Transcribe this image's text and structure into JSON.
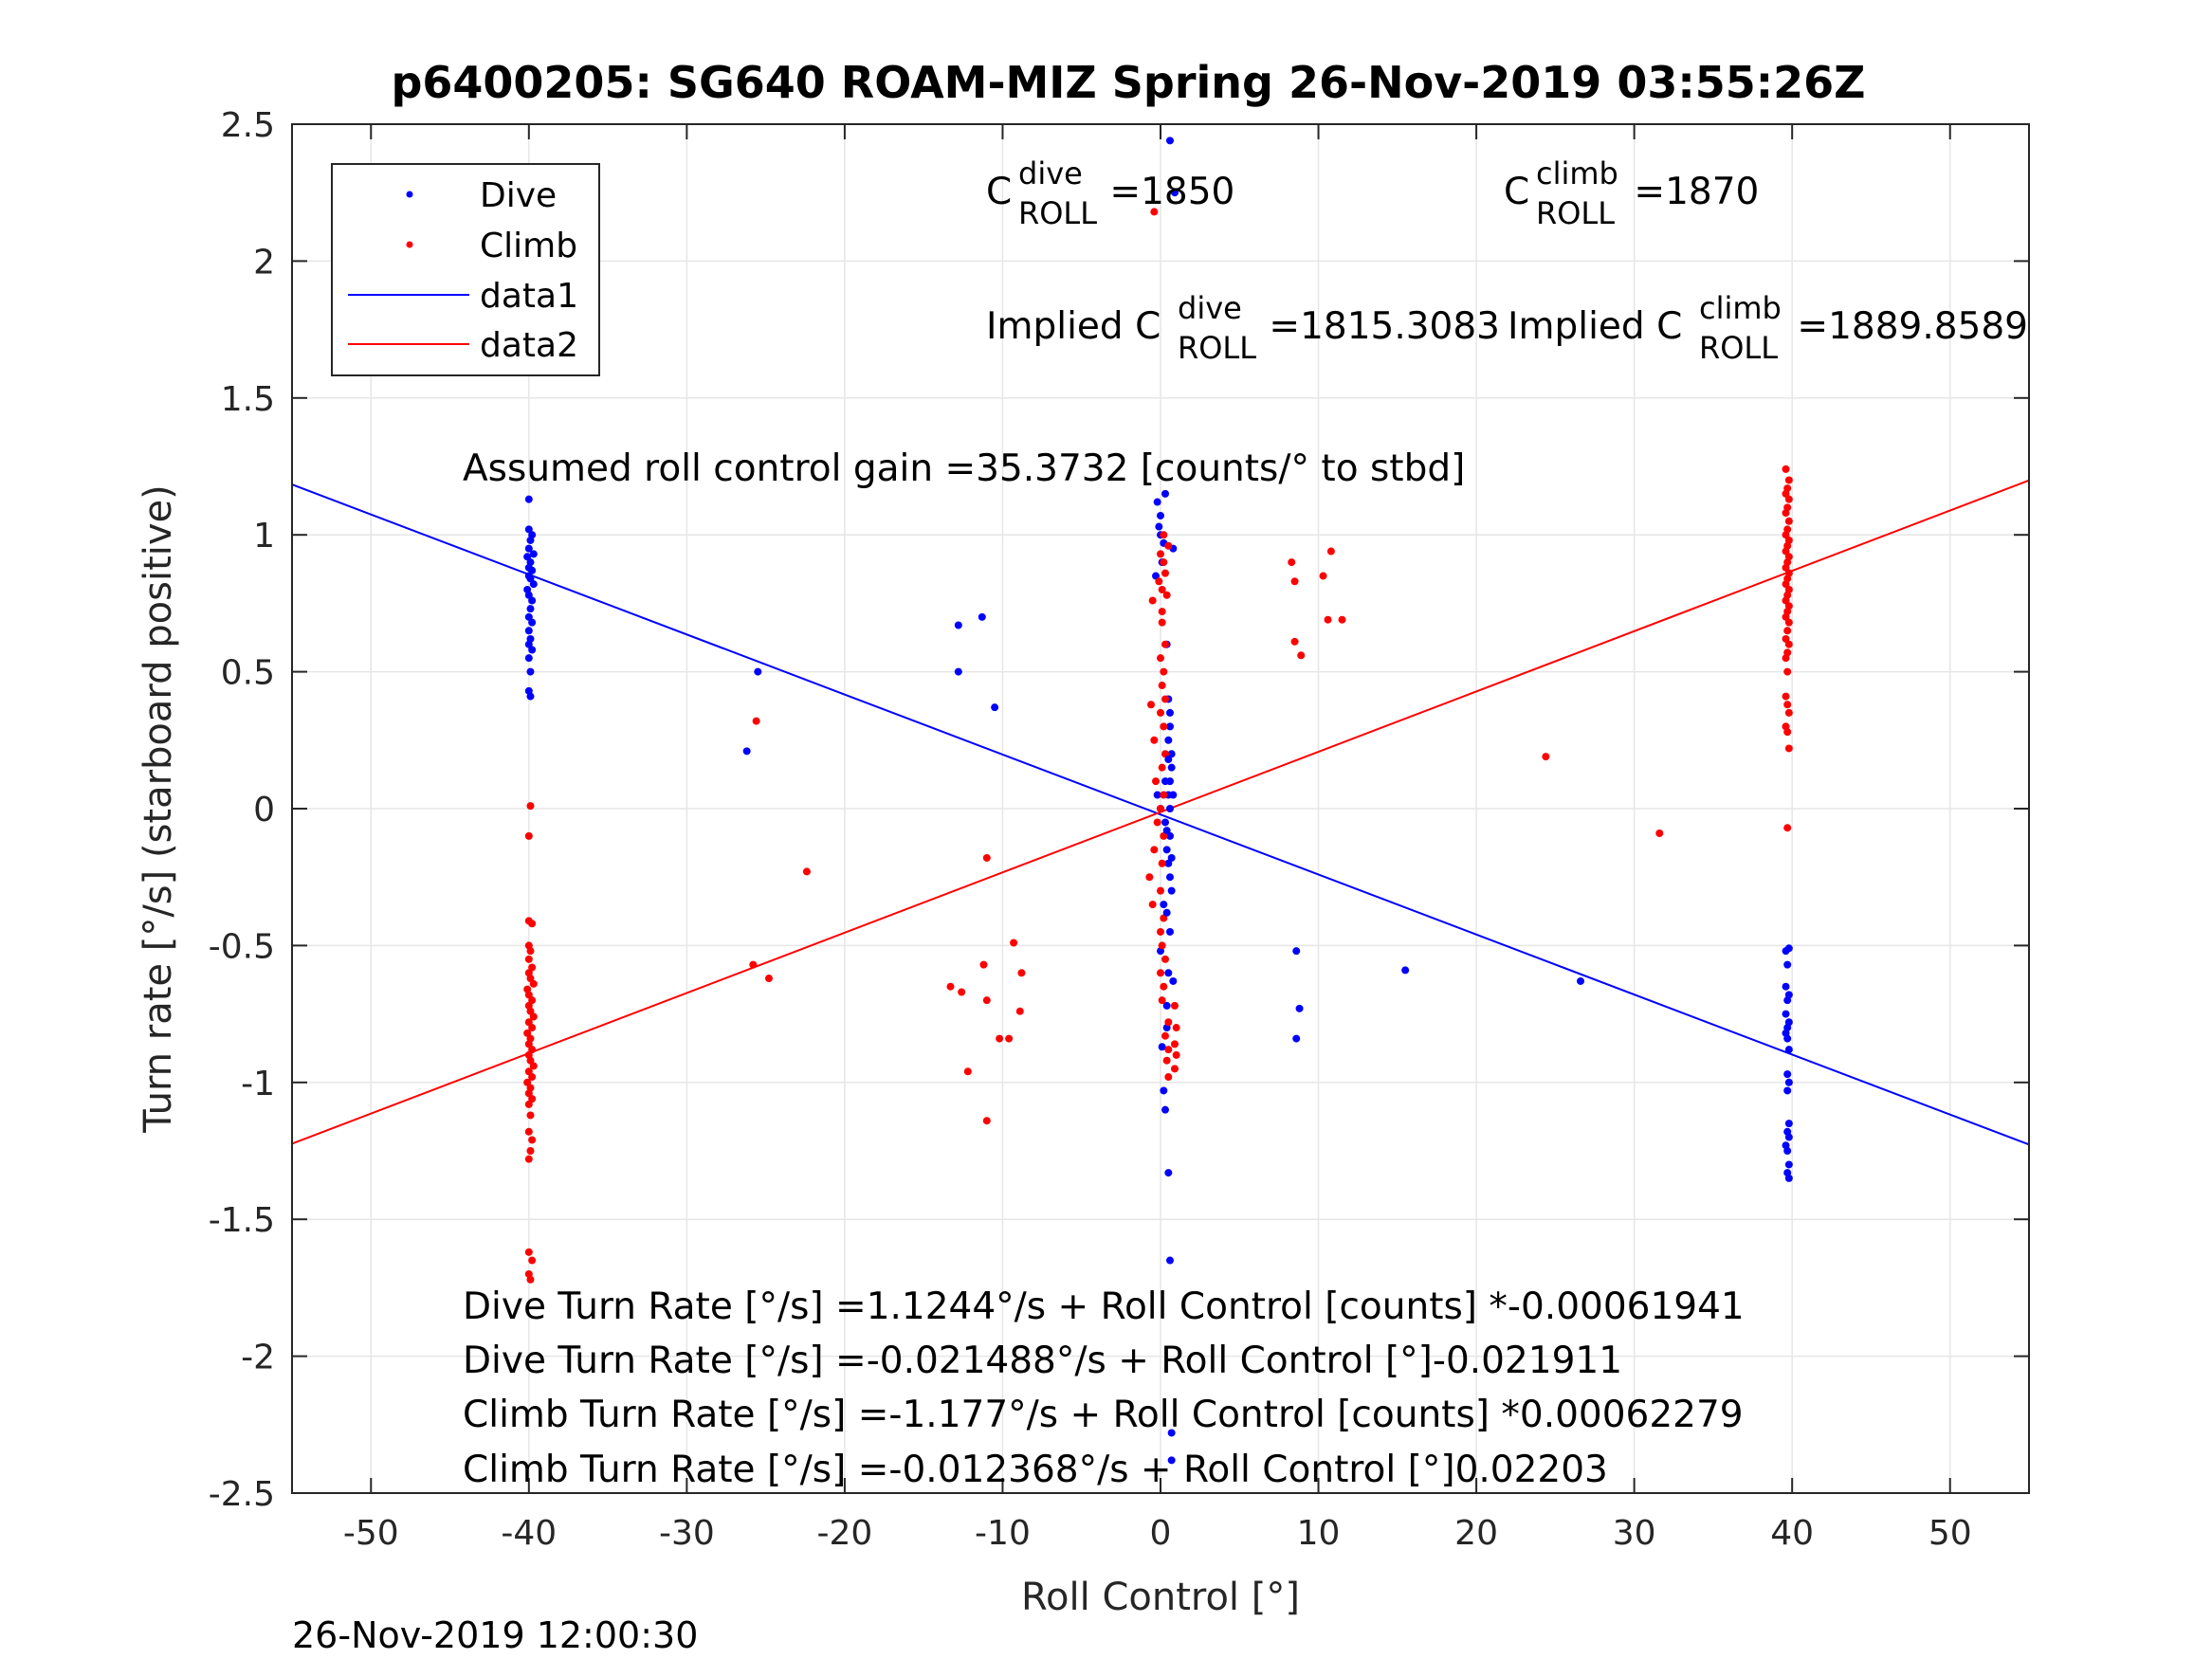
{
  "chart_data": {
    "type": "scatter",
    "title": "p6400205: SG640 ROAM-MIZ Spring 26-Nov-2019 03:55:26Z",
    "xlabel": "Roll Control [°]",
    "ylabel": "Turn rate [°/s] (starboard positive)",
    "xlim": [
      -55,
      55
    ],
    "ylim": [
      -2.5,
      2.5
    ],
    "xticks": [
      -50,
      -40,
      -30,
      -20,
      -10,
      0,
      10,
      20,
      30,
      40,
      50
    ],
    "yticks": [
      2.5,
      2,
      1.5,
      1,
      0.5,
      0,
      -0.5,
      -1,
      -1.5,
      -2,
      -2.5
    ],
    "xtick_labels": [
      "-50",
      "-40",
      "-30",
      "-20",
      "-10",
      "0",
      "10",
      "20",
      "30",
      "40",
      "50"
    ],
    "ytick_labels": [
      "2.5",
      "2",
      "1.5",
      "1",
      "0.5",
      "0",
      "-0.5",
      "-1",
      "-1.5",
      "-2",
      "-2.5"
    ],
    "grid": true,
    "legend": {
      "placement": "top-left",
      "entries": [
        {
          "label": "Dive",
          "kind": "marker",
          "color": "#0000ff"
        },
        {
          "label": "Climb",
          "kind": "marker",
          "color": "#ff0000"
        },
        {
          "label": "data1",
          "kind": "line",
          "color": "#0000ff"
        },
        {
          "label": "data2",
          "kind": "line",
          "color": "#ff0000"
        }
      ]
    },
    "annotations": {
      "c_dive": {
        "base": "C",
        "sup": "dive",
        "sub": "ROLL",
        "rest": " =1850"
      },
      "c_climb": {
        "base": "C",
        "sup": "climb",
        "sub": "ROLL",
        "rest": " =1870"
      },
      "implied_dive": {
        "prefix": "Implied C",
        "sup": "dive",
        "sub": "ROLL",
        "rest": " =1815.3083"
      },
      "implied_climb": {
        "prefix": "Implied C",
        "sup": "climb",
        "sub": "ROLL",
        "rest": " =1889.8589"
      },
      "gain": "Assumed roll control gain =35.3732 [counts/° to stbd]",
      "eq1": "Dive Turn Rate [°/s] =1.1244°/s + Roll Control [counts] *-0.00061941",
      "eq2": "Dive Turn Rate [°/s] =-0.021488°/s + Roll Control [°]-0.021911",
      "eq3": "Climb Turn Rate [°/s] =-1.177°/s + Roll Control [counts] *0.00062279",
      "eq4": "Climb Turn Rate [°/s] =-0.012368°/s + Roll Control [°]0.02203"
    },
    "lines": [
      {
        "name": "data1",
        "color": "#0000ff",
        "x": [
          -55,
          55
        ],
        "y": [
          1.184,
          -1.227
        ]
      },
      {
        "name": "data2",
        "color": "#ff0000",
        "x": [
          -55,
          55
        ],
        "y": [
          -1.224,
          1.199
        ]
      }
    ],
    "series": [
      {
        "name": "Dive",
        "color": "#0000ff",
        "points": [
          [
            -40,
            1.13
          ],
          [
            -40,
            1.02
          ],
          [
            -39.8,
            1.0
          ],
          [
            -39.9,
            0.98
          ],
          [
            -40,
            0.95
          ],
          [
            -39.7,
            0.93
          ],
          [
            -40.1,
            0.92
          ],
          [
            -39.9,
            0.9
          ],
          [
            -40,
            0.88
          ],
          [
            -39.8,
            0.87
          ],
          [
            -40,
            0.85
          ],
          [
            -39.9,
            0.84
          ],
          [
            -39.7,
            0.82
          ],
          [
            -40.1,
            0.8
          ],
          [
            -40,
            0.78
          ],
          [
            -39.8,
            0.76
          ],
          [
            -39.9,
            0.73
          ],
          [
            -40,
            0.7
          ],
          [
            -39.8,
            0.68
          ],
          [
            -40,
            0.65
          ],
          [
            -39.9,
            0.62
          ],
          [
            -40,
            0.6
          ],
          [
            -39.8,
            0.58
          ],
          [
            -40,
            0.55
          ],
          [
            -39.9,
            0.5
          ],
          [
            -40,
            0.43
          ],
          [
            -39.9,
            0.41
          ],
          [
            -26.2,
            0.21
          ],
          [
            -25.5,
            0.5
          ],
          [
            -12.8,
            0.67
          ],
          [
            -12.8,
            0.5
          ],
          [
            -11.3,
            0.7
          ],
          [
            -10.5,
            0.37
          ],
          [
            0.6,
            2.44
          ],
          [
            0.9,
            2.25
          ],
          [
            0.0,
            1.07
          ],
          [
            0.3,
            1.15
          ],
          [
            -0.2,
            1.12
          ],
          [
            -0.1,
            1.03
          ],
          [
            0.0,
            1.0
          ],
          [
            0.2,
            0.97
          ],
          [
            0.8,
            0.95
          ],
          [
            0.1,
            0.9
          ],
          [
            -0.3,
            0.85
          ],
          [
            0.4,
            0.6
          ],
          [
            0.5,
            0.4
          ],
          [
            0.6,
            0.3
          ],
          [
            0.7,
            0.2
          ],
          [
            0.6,
            0.1
          ],
          [
            0.5,
            0.05
          ],
          [
            -0.2,
            0.05
          ],
          [
            0.0,
            0.0
          ],
          [
            0.3,
            -0.05
          ],
          [
            0.6,
            -0.1
          ],
          [
            0.5,
            -0.2
          ],
          [
            0.7,
            -0.3
          ],
          [
            0.2,
            -0.35
          ],
          [
            0.6,
            -0.45
          ],
          [
            0.0,
            -0.52
          ],
          [
            0.5,
            -0.6
          ],
          [
            0.8,
            -0.63
          ],
          [
            0.4,
            -0.72
          ],
          [
            0.4,
            -0.8
          ],
          [
            0.1,
            -0.87
          ],
          [
            0.2,
            -1.03
          ],
          [
            0.3,
            -1.1
          ],
          [
            0.5,
            -1.33
          ],
          [
            0.6,
            -1.65
          ],
          [
            0.7,
            -2.28
          ],
          [
            0.7,
            -2.38
          ],
          [
            8.6,
            -0.52
          ],
          [
            8.8,
            -0.73
          ],
          [
            8.6,
            -0.84
          ],
          [
            15.5,
            -0.59
          ],
          [
            26.6,
            -0.63
          ],
          [
            39.6,
            -0.52
          ],
          [
            39.8,
            -0.51
          ],
          [
            39.7,
            -0.57
          ],
          [
            39.6,
            -0.65
          ],
          [
            39.8,
            -0.68
          ],
          [
            39.7,
            -0.7
          ],
          [
            39.6,
            -0.75
          ],
          [
            39.8,
            -0.78
          ],
          [
            39.7,
            -0.8
          ],
          [
            39.6,
            -0.82
          ],
          [
            39.7,
            -0.84
          ],
          [
            39.8,
            -0.88
          ],
          [
            39.7,
            -0.97
          ],
          [
            39.8,
            -1.0
          ],
          [
            39.7,
            -1.03
          ],
          [
            39.8,
            -1.15
          ],
          [
            39.7,
            -1.18
          ],
          [
            39.8,
            -1.2
          ],
          [
            39.6,
            -1.23
          ],
          [
            39.7,
            -1.25
          ],
          [
            39.8,
            -1.3
          ],
          [
            39.7,
            -1.33
          ],
          [
            39.8,
            -1.35
          ]
        ]
      },
      {
        "name": "Climb",
        "color": "#ff0000",
        "points": [
          [
            -39.9,
            0.01
          ],
          [
            -40,
            -0.1
          ],
          [
            -40,
            -0.41
          ],
          [
            -39.8,
            -0.42
          ],
          [
            -40,
            -0.5
          ],
          [
            -39.9,
            -0.52
          ],
          [
            -40,
            -0.55
          ],
          [
            -39.8,
            -0.58
          ],
          [
            -40,
            -0.6
          ],
          [
            -39.9,
            -0.62
          ],
          [
            -39.7,
            -0.64
          ],
          [
            -40.1,
            -0.66
          ],
          [
            -40,
            -0.68
          ],
          [
            -39.8,
            -0.7
          ],
          [
            -40,
            -0.72
          ],
          [
            -39.9,
            -0.74
          ],
          [
            -39.7,
            -0.76
          ],
          [
            -40,
            -0.78
          ],
          [
            -39.8,
            -0.8
          ],
          [
            -40.1,
            -0.82
          ],
          [
            -39.9,
            -0.84
          ],
          [
            -40,
            -0.86
          ],
          [
            -39.8,
            -0.88
          ],
          [
            -40,
            -0.9
          ],
          [
            -39.9,
            -0.92
          ],
          [
            -39.7,
            -0.94
          ],
          [
            -40,
            -0.96
          ],
          [
            -39.8,
            -0.98
          ],
          [
            -40.1,
            -1.0
          ],
          [
            -39.9,
            -1.02
          ],
          [
            -40,
            -1.04
          ],
          [
            -39.8,
            -1.06
          ],
          [
            -40,
            -1.08
          ],
          [
            -39.9,
            -1.12
          ],
          [
            -40,
            -1.18
          ],
          [
            -39.8,
            -1.21
          ],
          [
            -39.9,
            -1.25
          ],
          [
            -40,
            -1.28
          ],
          [
            -40,
            -1.62
          ],
          [
            -39.8,
            -1.65
          ],
          [
            -40,
            -1.7
          ],
          [
            -39.9,
            -1.72
          ],
          [
            -25.6,
            0.32
          ],
          [
            -25.8,
            -0.57
          ],
          [
            -24.8,
            -0.62
          ],
          [
            -22.4,
            -0.23
          ],
          [
            -13.3,
            -0.65
          ],
          [
            -12.6,
            -0.67
          ],
          [
            -12.2,
            -0.96
          ],
          [
            -11.0,
            -0.18
          ],
          [
            -11.2,
            -0.57
          ],
          [
            -11.0,
            -0.7
          ],
          [
            -11.0,
            -1.14
          ],
          [
            -10.2,
            -0.84
          ],
          [
            -9.6,
            -0.84
          ],
          [
            -9.3,
            -0.49
          ],
          [
            -8.8,
            -0.6
          ],
          [
            -8.9,
            -0.74
          ],
          [
            -0.5,
            0.76
          ],
          [
            0.1,
            0.72
          ],
          [
            0.4,
            0.78
          ],
          [
            0.1,
            0.8
          ],
          [
            -0.1,
            0.83
          ],
          [
            0.3,
            0.86
          ],
          [
            0.2,
            0.9
          ],
          [
            0.0,
            0.93
          ],
          [
            0.5,
            0.96
          ],
          [
            0.2,
            1.0
          ],
          [
            0.1,
            0.68
          ],
          [
            0.3,
            0.6
          ],
          [
            0.0,
            0.55
          ],
          [
            0.2,
            0.5
          ],
          [
            0.1,
            0.45
          ],
          [
            0.3,
            0.4
          ],
          [
            -0.6,
            0.38
          ],
          [
            0.0,
            0.35
          ],
          [
            0.2,
            0.3
          ],
          [
            -0.4,
            0.25
          ],
          [
            0.3,
            0.2
          ],
          [
            0.1,
            0.15
          ],
          [
            -0.3,
            0.1
          ],
          [
            0.2,
            0.05
          ],
          [
            0.0,
            0.0
          ],
          [
            -0.2,
            -0.05
          ],
          [
            0.2,
            -0.1
          ],
          [
            -0.4,
            -0.15
          ],
          [
            0.1,
            -0.2
          ],
          [
            -0.7,
            -0.25
          ],
          [
            0.0,
            -0.3
          ],
          [
            -0.5,
            -0.35
          ],
          [
            0.2,
            -0.4
          ],
          [
            0.0,
            -0.45
          ],
          [
            0.1,
            -0.5
          ],
          [
            0.3,
            -0.55
          ],
          [
            0.0,
            -0.6
          ],
          [
            0.2,
            -0.65
          ],
          [
            0.1,
            -0.7
          ],
          [
            0.9,
            -0.72
          ],
          [
            0.5,
            -0.78
          ],
          [
            1.0,
            -0.8
          ],
          [
            0.3,
            -0.83
          ],
          [
            0.9,
            -0.86
          ],
          [
            0.5,
            -0.88
          ],
          [
            1.0,
            -0.9
          ],
          [
            0.4,
            -0.92
          ],
          [
            0.9,
            -0.95
          ],
          [
            0.5,
            -0.98
          ],
          [
            -0.4,
            2.18
          ],
          [
            8.3,
            0.9
          ],
          [
            8.5,
            0.83
          ],
          [
            10.3,
            0.85
          ],
          [
            10.8,
            0.94
          ],
          [
            8.5,
            0.61
          ],
          [
            8.9,
            0.56
          ],
          [
            10.6,
            0.69
          ],
          [
            11.5,
            0.69
          ],
          [
            24.4,
            0.19
          ],
          [
            31.6,
            -0.09
          ],
          [
            39.6,
            1.24
          ],
          [
            39.8,
            1.2
          ],
          [
            39.7,
            1.17
          ],
          [
            39.6,
            1.15
          ],
          [
            39.8,
            1.13
          ],
          [
            39.7,
            1.1
          ],
          [
            39.6,
            1.08
          ],
          [
            39.8,
            1.05
          ],
          [
            39.7,
            1.02
          ],
          [
            39.6,
            1.0
          ],
          [
            39.8,
            0.98
          ],
          [
            39.7,
            0.96
          ],
          [
            39.6,
            0.94
          ],
          [
            39.8,
            0.92
          ],
          [
            39.7,
            0.9
          ],
          [
            39.6,
            0.88
          ],
          [
            39.8,
            0.86
          ],
          [
            39.7,
            0.84
          ],
          [
            39.6,
            0.82
          ],
          [
            39.8,
            0.8
          ],
          [
            39.7,
            0.78
          ],
          [
            39.6,
            0.76
          ],
          [
            39.8,
            0.74
          ],
          [
            39.7,
            0.72
          ],
          [
            39.6,
            0.7
          ],
          [
            39.8,
            0.68
          ],
          [
            39.7,
            0.65
          ],
          [
            39.6,
            0.62
          ],
          [
            39.8,
            0.6
          ],
          [
            39.7,
            0.57
          ],
          [
            39.6,
            0.55
          ],
          [
            39.7,
            0.5
          ],
          [
            39.6,
            0.41
          ],
          [
            39.7,
            0.38
          ],
          [
            39.8,
            0.35
          ],
          [
            39.6,
            0.3
          ],
          [
            39.7,
            0.28
          ],
          [
            39.8,
            0.22
          ],
          [
            39.7,
            -0.07
          ]
        ]
      },
      {
        "name": "Dive",
        "color": "#0000ff",
        "points": [
          [
            0.6,
            0.0
          ],
          [
            0.4,
            -0.15
          ],
          [
            0.7,
            0.15
          ],
          [
            0.5,
            0.25
          ],
          [
            0.6,
            -0.25
          ],
          [
            0.3,
            0.1
          ],
          [
            0.8,
            0.05
          ],
          [
            0.4,
            -0.08
          ],
          [
            0.7,
            -0.18
          ],
          [
            0.5,
            0.18
          ],
          [
            0.6,
            0.35
          ],
          [
            0.4,
            -0.38
          ]
        ]
      }
    ]
  },
  "footer_timestamp": "26-Nov-2019 12:00:30"
}
